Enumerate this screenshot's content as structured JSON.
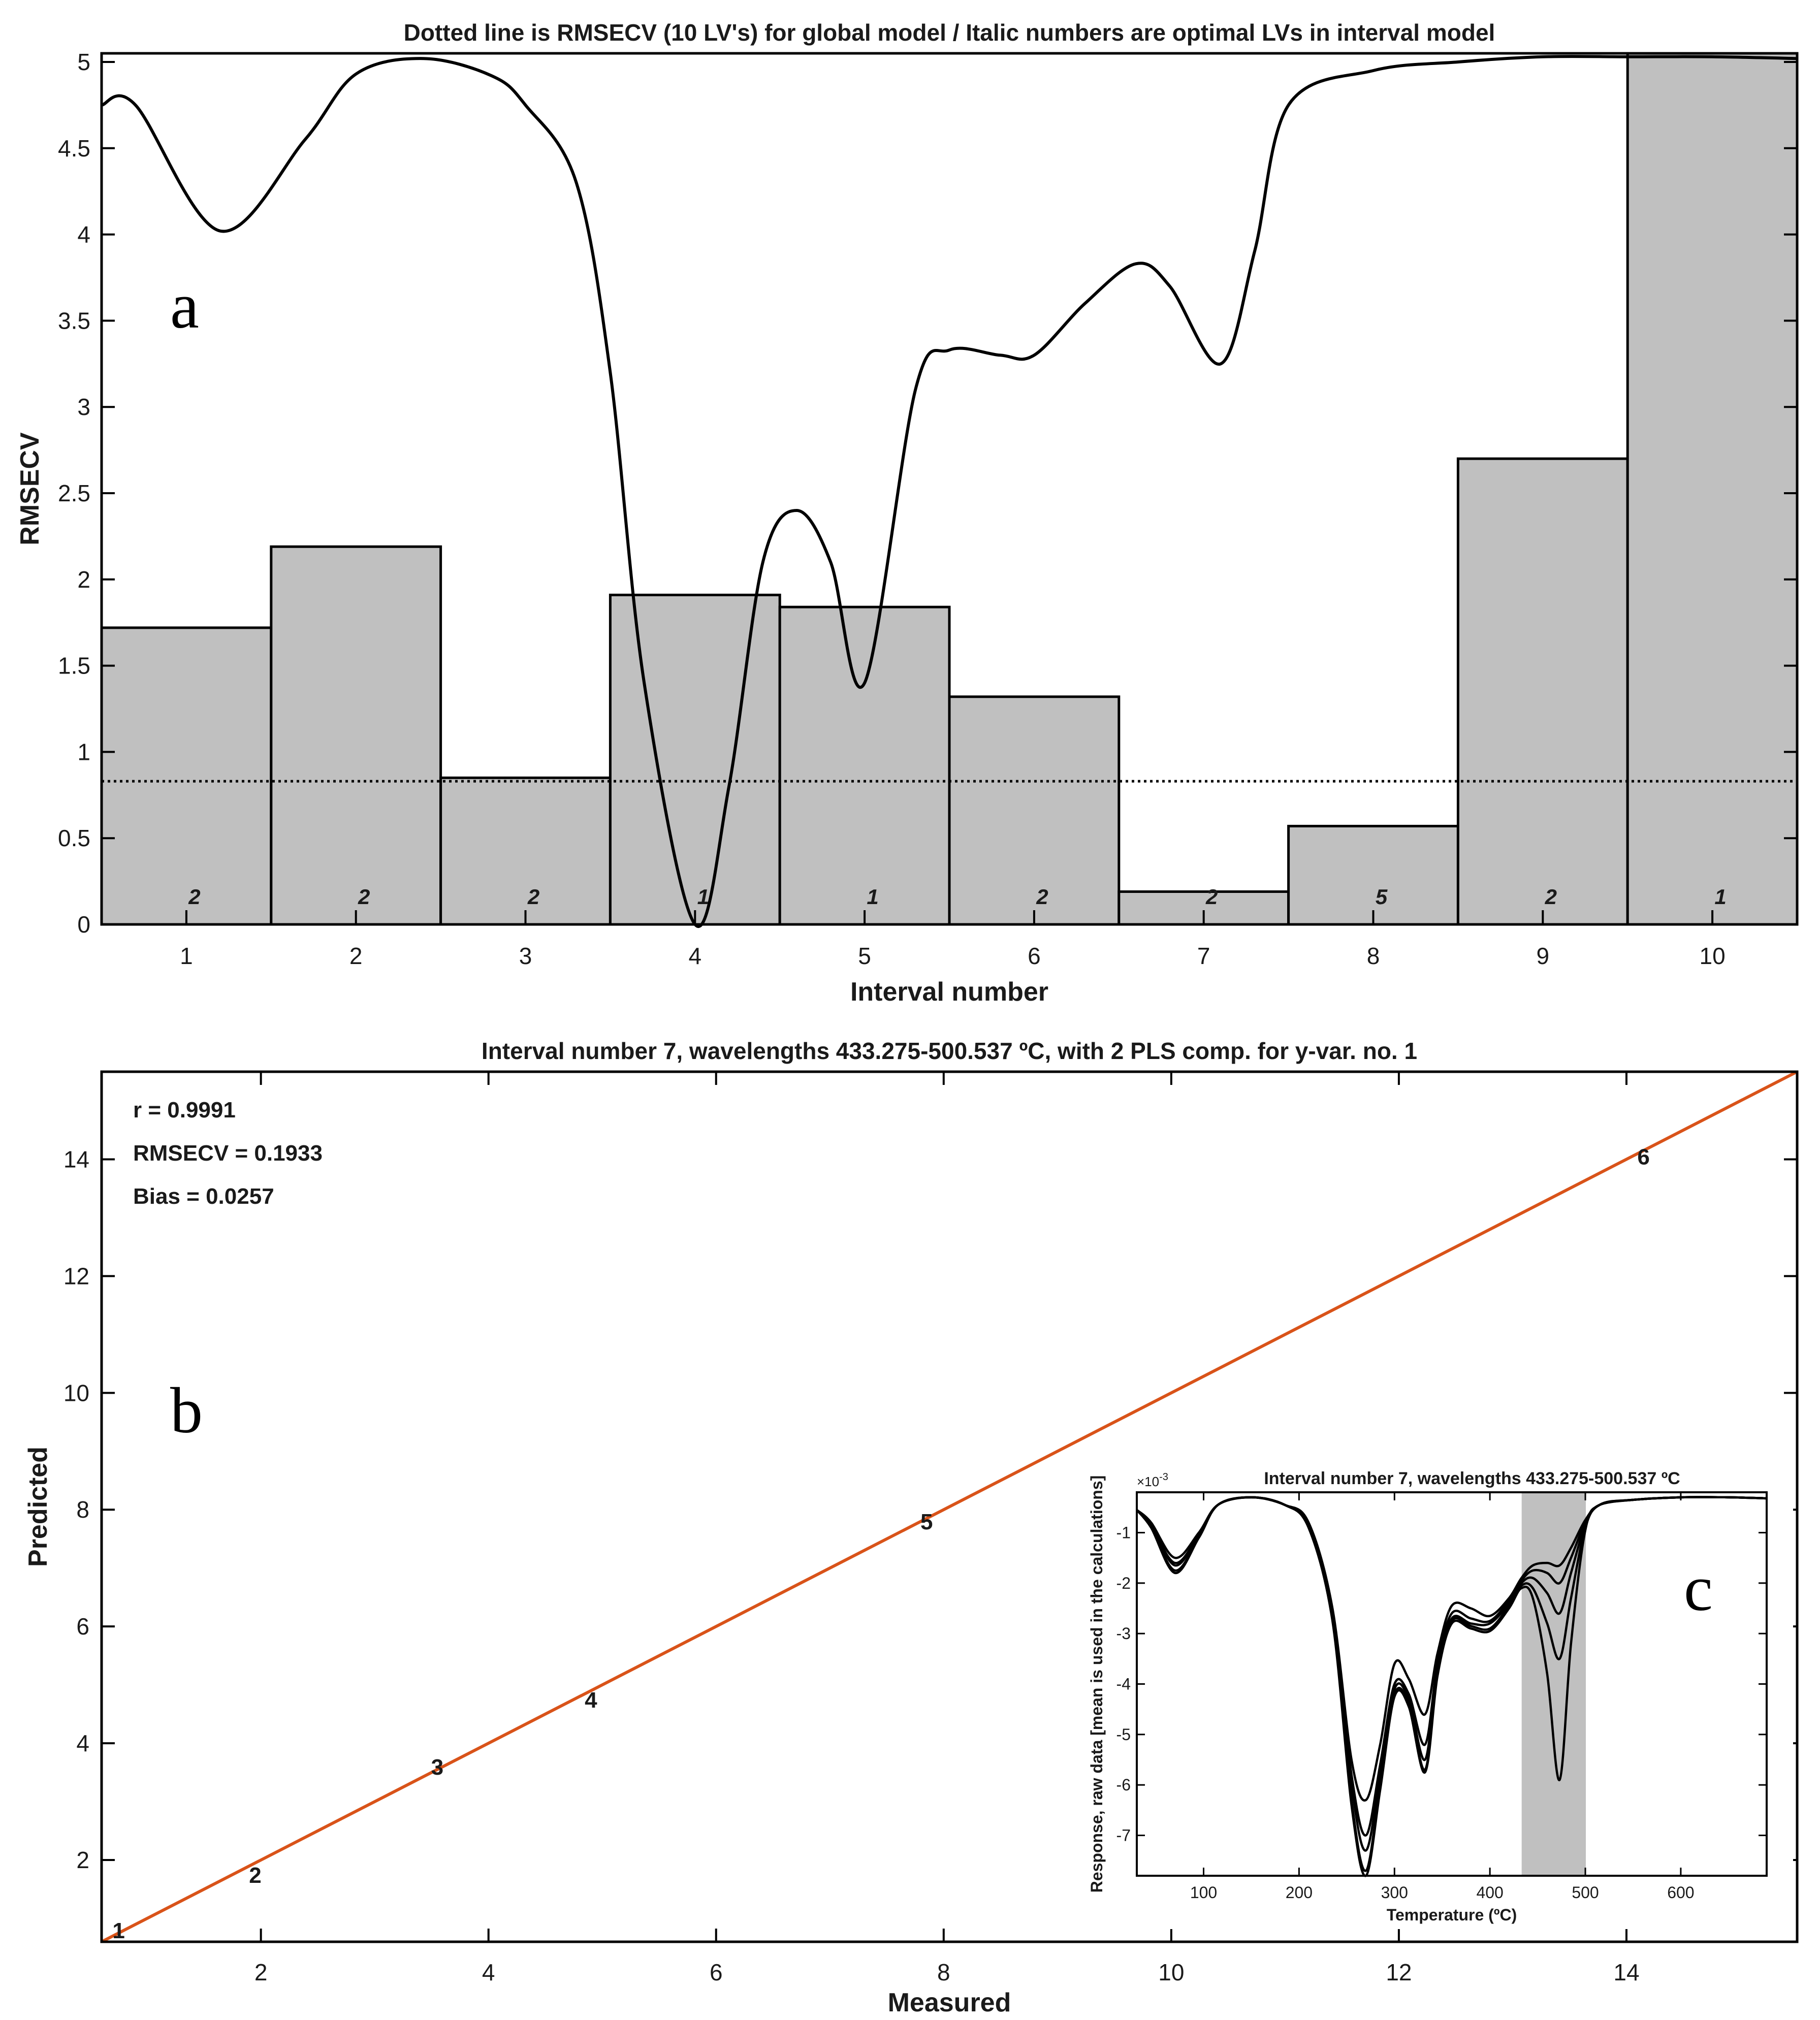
{
  "panels": {
    "a_label": "a",
    "b_label": "b",
    "c_label": "c"
  },
  "colors": {
    "bar_fill": "#c0c0c0",
    "line": "#000000",
    "fit_line": "#d95319",
    "inset_band": "#c0c0c0"
  },
  "chart_data": [
    {
      "type": "bar",
      "title": "Dotted line is RMSECV (10 LV's) for global model / Italic numbers are optimal LVs in interval model",
      "xlabel": "Interval number",
      "ylabel": "RMSECV",
      "categories": [
        "1",
        "2",
        "3",
        "4",
        "5",
        "6",
        "7",
        "8",
        "9",
        "10"
      ],
      "values": [
        1.72,
        2.19,
        0.85,
        1.91,
        1.84,
        1.32,
        0.19,
        0.57,
        2.7,
        5.05
      ],
      "optimal_lvs": [
        "2",
        "2",
        "2",
        "1",
        "1",
        "2",
        "2",
        "5",
        "2",
        "1"
      ],
      "global_rmsecv": 0.83,
      "ylim": [
        0,
        5.05
      ],
      "yticks": [
        "0",
        "0.5",
        "1",
        "1.5",
        "2",
        "2.5",
        "3",
        "3.5",
        "4",
        "4.5",
        "5"
      ],
      "overlay_curve": {
        "x": [
          0.5,
          0.7,
          1.2,
          1.7,
          2.0,
          2.4,
          2.8,
          3.0,
          3.3,
          3.5,
          3.7,
          4.0,
          4.2,
          4.4,
          4.6,
          4.8,
          5.0,
          5.3,
          5.5,
          5.8,
          6.0,
          6.3,
          6.6,
          6.8,
          7.1,
          7.3,
          7.5,
          8.0,
          8.5,
          9.0,
          9.5,
          10.0,
          10.5
        ],
        "y": [
          4.75,
          4.75,
          4.02,
          4.55,
          4.93,
          5.02,
          4.92,
          4.75,
          4.3,
          3.2,
          1.4,
          0.0,
          0.8,
          2.1,
          2.4,
          2.1,
          1.4,
          3.1,
          3.33,
          3.3,
          3.3,
          3.6,
          3.83,
          3.7,
          3.25,
          3.9,
          4.75,
          4.95,
          5.0,
          5.03,
          5.03,
          5.03,
          5.02
        ]
      }
    },
    {
      "type": "scatter",
      "title": "Interval number 7, wavelengths 433.275-500.537 ºC, with 2 PLS comp. for y-var. no. 1",
      "xlabel": "Measured",
      "ylabel": "Predicted",
      "xlim": [
        0.6,
        15.5
      ],
      "ylim": [
        0.6,
        15.5
      ],
      "xticks": [
        "2",
        "4",
        "6",
        "8",
        "10",
        "12",
        "14"
      ],
      "yticks": [
        "2",
        "4",
        "6",
        "8",
        "10",
        "12",
        "14"
      ],
      "points": [
        {
          "label": "1",
          "x": 0.75,
          "y": 0.8
        },
        {
          "label": "2",
          "x": 1.95,
          "y": 1.75
        },
        {
          "label": "3",
          "x": 3.55,
          "y": 3.6
        },
        {
          "label": "4",
          "x": 4.9,
          "y": 4.75
        },
        {
          "label": "5",
          "x": 7.85,
          "y": 7.8
        },
        {
          "label": "6",
          "x": 14.15,
          "y": 14.05
        }
      ],
      "fit_line": {
        "x": [
          0.6,
          15.5
        ],
        "y": [
          0.6,
          15.5
        ]
      },
      "stats": [
        "r = 0.9991",
        "RMSECV = 0.1933",
        "Bias = 0.0257"
      ]
    },
    {
      "type": "line",
      "title": "Interval number 7, wavelengths 433.275-500.537 ºC",
      "xlabel": "Temperature (ºC)",
      "ylabel": "Response, raw data [mean is used in the calculations]",
      "exponent_label": "×10",
      "exponent_power": "-3",
      "xlim": [
        30,
        690
      ],
      "ylim": [
        -7.8,
        -0.2
      ],
      "xticks": [
        "100",
        "200",
        "300",
        "400",
        "500",
        "600"
      ],
      "yticks": [
        "-7",
        "-6",
        "-5",
        "-4",
        "-3",
        "-2",
        "-1"
      ],
      "highlight_interval": [
        433.275,
        500.537
      ],
      "series": [
        {
          "x": [
            30,
            45,
            70,
            95,
            115,
            150,
            185,
            210,
            235,
            255,
            270,
            285,
            300,
            315,
            332,
            345,
            360,
            380,
            400,
            420,
            433,
            445,
            460,
            473,
            485,
            500,
            515,
            550,
            600,
            650,
            690
          ],
          "y": [
            -0.55,
            -0.8,
            -1.5,
            -1.0,
            -0.45,
            -0.3,
            -0.45,
            -0.8,
            -2.5,
            -5.5,
            -6.3,
            -5.2,
            -3.6,
            -3.9,
            -4.6,
            -3.4,
            -2.45,
            -2.5,
            -2.65,
            -2.3,
            -1.9,
            -1.65,
            -1.6,
            -1.65,
            -1.3,
            -0.75,
            -0.45,
            -0.35,
            -0.3,
            -0.3,
            -0.32
          ]
        },
        {
          "x": [
            30,
            45,
            70,
            95,
            115,
            150,
            185,
            210,
            235,
            255,
            270,
            285,
            300,
            315,
            332,
            345,
            360,
            380,
            400,
            420,
            433,
            445,
            460,
            473,
            485,
            500,
            515,
            550,
            600,
            650,
            690
          ],
          "y": [
            -0.55,
            -0.85,
            -1.6,
            -1.05,
            -0.45,
            -0.3,
            -0.45,
            -0.85,
            -2.6,
            -5.8,
            -7.0,
            -5.6,
            -4.0,
            -4.2,
            -5.2,
            -3.6,
            -2.6,
            -2.7,
            -2.75,
            -2.35,
            -1.95,
            -1.75,
            -1.8,
            -2.0,
            -1.5,
            -0.8,
            -0.45,
            -0.35,
            -0.3,
            -0.3,
            -0.32
          ]
        },
        {
          "x": [
            30,
            45,
            70,
            95,
            115,
            150,
            185,
            210,
            235,
            255,
            270,
            285,
            300,
            315,
            332,
            345,
            360,
            380,
            400,
            420,
            433,
            445,
            460,
            473,
            485,
            500,
            515,
            550,
            600,
            650,
            690
          ],
          "y": [
            -0.55,
            -0.85,
            -1.65,
            -1.05,
            -0.45,
            -0.3,
            -0.45,
            -0.85,
            -2.65,
            -6.0,
            -7.3,
            -5.8,
            -4.1,
            -4.3,
            -5.5,
            -3.7,
            -2.7,
            -2.8,
            -2.8,
            -2.4,
            -2.0,
            -1.9,
            -2.2,
            -2.6,
            -1.8,
            -0.85,
            -0.45,
            -0.35,
            -0.3,
            -0.3,
            -0.32
          ]
        },
        {
          "x": [
            30,
            45,
            70,
            95,
            115,
            150,
            185,
            210,
            235,
            255,
            270,
            285,
            300,
            315,
            332,
            345,
            360,
            380,
            400,
            420,
            433,
            445,
            460,
            473,
            485,
            500,
            515,
            550,
            600,
            650,
            690
          ],
          "y": [
            -0.55,
            -0.9,
            -1.75,
            -1.1,
            -0.45,
            -0.3,
            -0.45,
            -0.9,
            -2.7,
            -6.3,
            -7.7,
            -6.0,
            -4.2,
            -4.4,
            -5.7,
            -3.8,
            -2.75,
            -2.85,
            -2.9,
            -2.45,
            -2.05,
            -2.1,
            -2.8,
            -3.5,
            -2.3,
            -0.9,
            -0.45,
            -0.35,
            -0.3,
            -0.3,
            -0.32
          ]
        },
        {
          "x": [
            30,
            45,
            70,
            95,
            115,
            150,
            185,
            210,
            235,
            255,
            270,
            285,
            300,
            315,
            332,
            345,
            360,
            380,
            400,
            420,
            433,
            445,
            460,
            473,
            485,
            500,
            515,
            550,
            600,
            650,
            690
          ],
          "y": [
            -0.55,
            -0.9,
            -1.8,
            -1.1,
            -0.45,
            -0.3,
            -0.45,
            -0.9,
            -2.75,
            -6.4,
            -7.8,
            -6.1,
            -4.25,
            -4.45,
            -5.75,
            -3.85,
            -2.8,
            -2.9,
            -2.95,
            -2.5,
            -2.1,
            -2.3,
            -3.8,
            -5.9,
            -3.2,
            -0.95,
            -0.45,
            -0.35,
            -0.3,
            -0.3,
            -0.32
          ]
        }
      ]
    }
  ]
}
